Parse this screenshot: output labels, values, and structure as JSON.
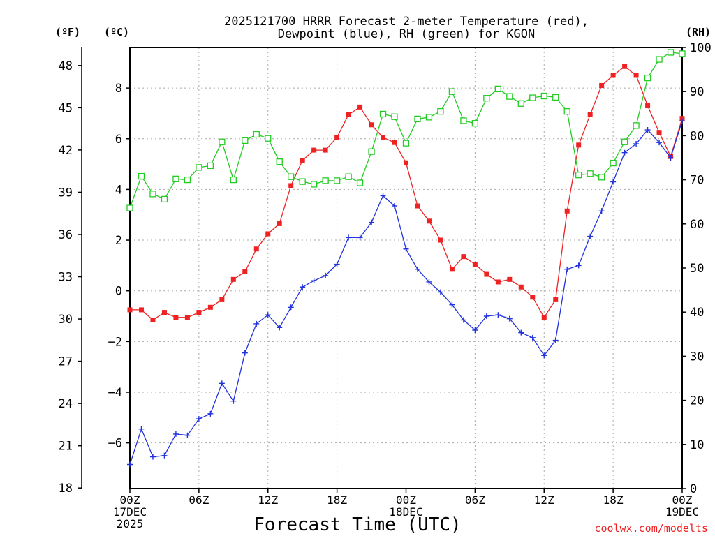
{
  "chart_data": {
    "type": "line",
    "title_line1": "2025121700 HRRR Forecast 2-meter Temperature (red),",
    "title_line2": "Dewpoint (blue), RH (green) for KGON",
    "xlabel": "Forecast Time (UTC)",
    "credit": "coolwx.com/modelts",
    "left_outer_axis": {
      "label": "(ºF)",
      "ticks": [
        18,
        21,
        24,
        27,
        30,
        33,
        36,
        39,
        42,
        45,
        48
      ],
      "range": [
        17.96,
        49.28
      ]
    },
    "left_inner_axis": {
      "label": "(ºC)",
      "ticks": [
        -6,
        -4,
        -2,
        0,
        2,
        4,
        6,
        8
      ],
      "range": [
        -7.8,
        9.6
      ]
    },
    "right_axis": {
      "label": "(RH)",
      "ticks": [
        0,
        10,
        20,
        30,
        40,
        50,
        60,
        70,
        80,
        90,
        100
      ],
      "range": [
        0,
        100
      ]
    },
    "x_range_hours": [
      0,
      48
    ],
    "x_ticks": [
      {
        "hour": 0,
        "lines": [
          "00Z",
          "17DEC",
          "2025"
        ]
      },
      {
        "hour": 6,
        "lines": [
          "06Z"
        ]
      },
      {
        "hour": 12,
        "lines": [
          "12Z"
        ]
      },
      {
        "hour": 18,
        "lines": [
          "18Z"
        ]
      },
      {
        "hour": 24,
        "lines": [
          "00Z",
          "18DEC"
        ]
      },
      {
        "hour": 30,
        "lines": [
          "06Z"
        ]
      },
      {
        "hour": 36,
        "lines": [
          "12Z"
        ]
      },
      {
        "hour": 42,
        "lines": [
          "18Z"
        ]
      },
      {
        "hour": 48,
        "lines": [
          "00Z",
          "19DEC"
        ]
      }
    ],
    "grid": true,
    "series": [
      {
        "name": "Temperature",
        "color": "#ee2222",
        "marker": "filled-square",
        "units": "C",
        "values": [
          -0.75,
          -0.75,
          -1.15,
          -0.85,
          -1.05,
          -1.05,
          -0.85,
          -0.65,
          -0.35,
          0.45,
          0.75,
          1.65,
          2.25,
          2.65,
          4.15,
          5.15,
          5.55,
          5.55,
          6.05,
          6.95,
          7.25,
          6.55,
          6.05,
          5.85,
          5.05,
          3.35,
          2.75,
          2.0,
          0.85,
          1.35,
          1.05,
          0.65,
          0.35,
          0.45,
          0.15,
          -0.25,
          -1.05,
          -0.35,
          3.15,
          5.75,
          6.95,
          8.1,
          8.5,
          8.85,
          8.5,
          7.3,
          6.25,
          5.3,
          6.8
        ]
      },
      {
        "name": "Dewpoint",
        "color": "#2233dd",
        "marker": "plus",
        "units": "C",
        "values": [
          -6.85,
          -5.45,
          -6.55,
          -6.5,
          -5.65,
          -5.7,
          -5.05,
          -4.85,
          -3.65,
          -4.35,
          -2.45,
          -1.3,
          -0.95,
          -1.45,
          -0.65,
          0.15,
          0.4,
          0.6,
          1.05,
          2.1,
          2.1,
          2.7,
          3.75,
          3.35,
          1.65,
          0.85,
          0.35,
          -0.05,
          -0.55,
          -1.15,
          -1.55,
          -1.0,
          -0.95,
          -1.1,
          -1.65,
          -1.85,
          -2.55,
          -1.95,
          0.85,
          1.0,
          2.15,
          3.15,
          4.3,
          5.45,
          5.8,
          6.35,
          5.85,
          5.25,
          6.7
        ]
      },
      {
        "name": "RH",
        "color": "#22cc22",
        "marker": "open-square",
        "units": "%",
        "values": [
          63.6,
          70.8,
          66.8,
          65.6,
          70.2,
          70.0,
          72.8,
          73.2,
          78.6,
          70.0,
          78.9,
          80.3,
          79.4,
          74.1,
          70.7,
          69.6,
          69.0,
          69.8,
          69.8,
          70.7,
          69.3,
          76.4,
          84.9,
          84.3,
          78.3,
          83.8,
          84.2,
          85.5,
          90.0,
          83.4,
          82.8,
          88.5,
          90.6,
          88.9,
          87.3,
          88.6,
          89.0,
          88.7,
          85.5,
          71.1,
          71.4,
          70.6,
          73.8,
          78.6,
          82.3,
          93.1,
          97.3,
          98.9,
          98.6
        ]
      }
    ]
  }
}
